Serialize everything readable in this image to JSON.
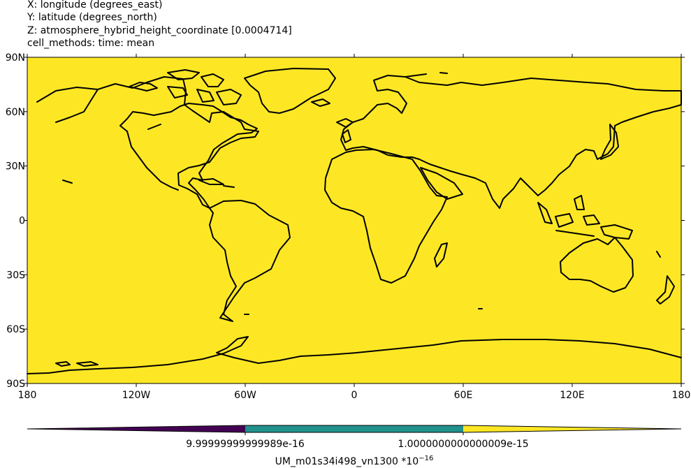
{
  "header": {
    "x_line": "X: longitude  (degrees_east)",
    "y_line": "Y: latitude  (degrees_north)",
    "z_line": "Z: atmosphere_hybrid_height_coordinate [0.0004714]",
    "cell_methods": "cell_methods: time: mean"
  },
  "map": {
    "fill_color": "#fde725",
    "coastline_color": "#000000",
    "projection": "plate-carree",
    "lon_range": [
      -180,
      180
    ],
    "lat_range": [
      -90,
      90
    ],
    "x_ticks": [
      {
        "value": -180,
        "label": "180"
      },
      {
        "value": -120,
        "label": "120W"
      },
      {
        "value": -60,
        "label": "60W"
      },
      {
        "value": 0,
        "label": "0"
      },
      {
        "value": 60,
        "label": "60E"
      },
      {
        "value": 120,
        "label": "120E"
      },
      {
        "value": 180,
        "label": "180"
      }
    ],
    "y_ticks": [
      {
        "value": 90,
        "label": "90N"
      },
      {
        "value": 60,
        "label": "60N"
      },
      {
        "value": 30,
        "label": "30N"
      },
      {
        "value": 0,
        "label": "0"
      },
      {
        "value": -30,
        "label": "30S"
      },
      {
        "value": -60,
        "label": "60S"
      },
      {
        "value": -90,
        "label": "90S"
      }
    ]
  },
  "colorbar": {
    "segments": [
      {
        "color": "#440154"
      },
      {
        "color": "#21918c"
      },
      {
        "color": "#fde725"
      }
    ],
    "tick_labels": [
      "9.99999999999989e-16",
      "1.0000000000000009e-15"
    ],
    "label_main": "UM_m01s34i498_vn1300 *10",
    "label_exp": "−16"
  }
}
